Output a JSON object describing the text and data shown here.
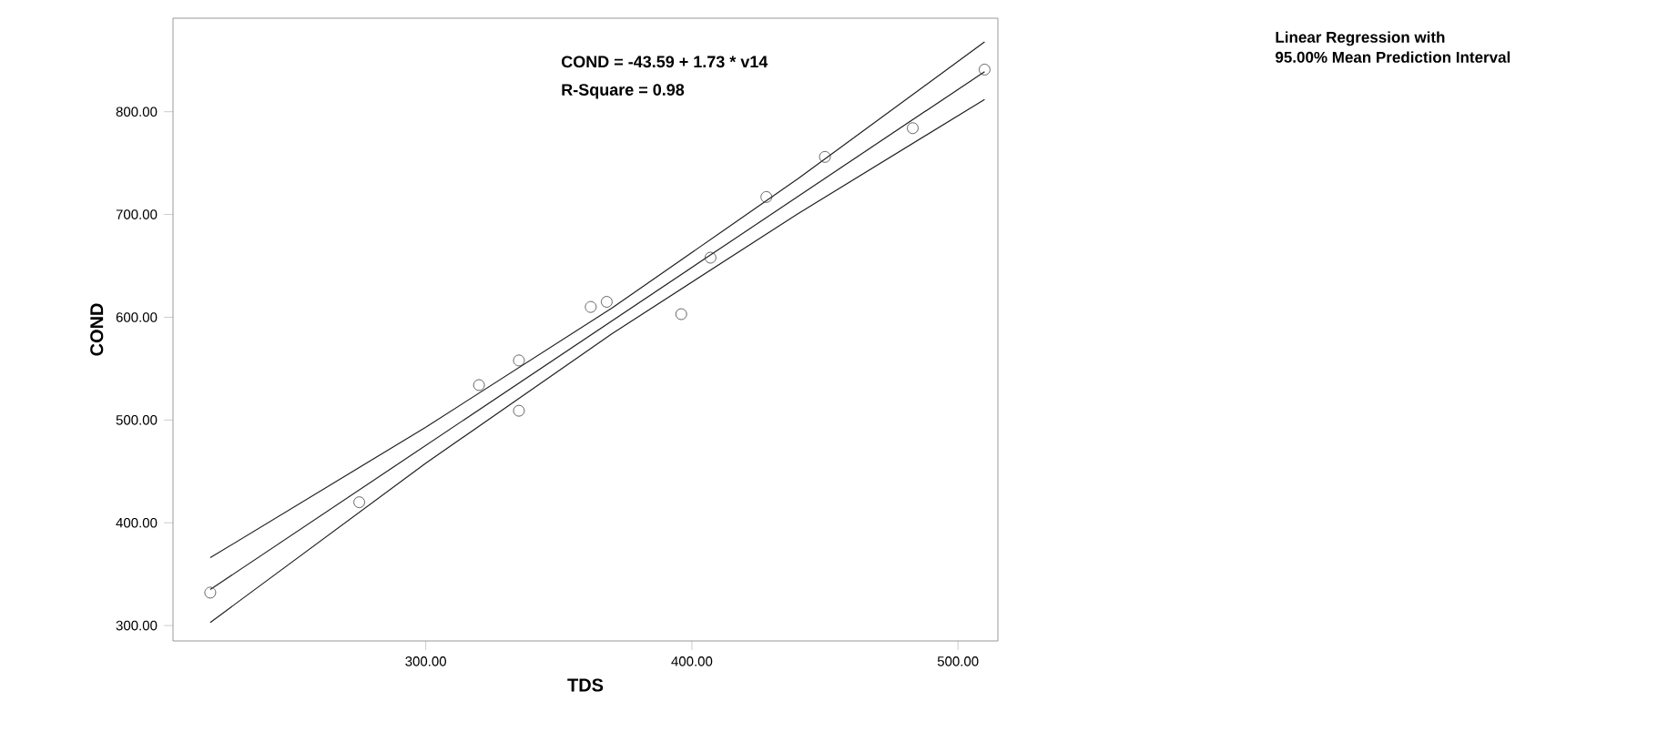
{
  "chart_data": {
    "type": "scatter",
    "xlabel": "TDS",
    "ylabel": "COND",
    "annotations": [
      "COND = -43.59 + 1.73 * v14",
      "R-Square = 0.98",
      "Linear Regression with",
      "95.00% Mean Prediction Interval"
    ],
    "xlim": [
      205,
      515
    ],
    "ylim": [
      285,
      891
    ],
    "xticks": [
      {
        "value": 300,
        "label": "300.00"
      },
      {
        "value": 400,
        "label": "400.00"
      },
      {
        "value": 500,
        "label": "500.00"
      }
    ],
    "yticks": [
      {
        "value": 300,
        "label": "300.00"
      },
      {
        "value": 400,
        "label": "400.00"
      },
      {
        "value": 500,
        "label": "500.00"
      },
      {
        "value": 600,
        "label": "600.00"
      },
      {
        "value": 700,
        "label": "700.00"
      },
      {
        "value": 800,
        "label": "800.00"
      }
    ],
    "grid": false,
    "marker": "circle",
    "series": [
      {
        "color": "#404040",
        "x": [
          219,
          275,
          320,
          335,
          335,
          362,
          368,
          396,
          407,
          428,
          450,
          483,
          510
        ],
        "values": [
          332,
          420,
          534,
          558,
          509,
          610,
          615,
          603,
          658,
          717,
          756,
          784,
          841
        ]
      },
      {
        "type": "line",
        "color": "#202020",
        "marker": "none",
        "x": [
          219,
          510
        ],
        "values": [
          335,
          839
        ]
      },
      {
        "type": "line",
        "color": "#202020",
        "marker": "none",
        "x": [
          219,
          300,
          370,
          440,
          510
        ],
        "values": [
          366,
          493,
          609,
          735,
          868
        ]
      },
      {
        "type": "line",
        "color": "#202020",
        "marker": "none",
        "x": [
          219,
          300,
          370,
          440,
          510
        ],
        "values": [
          303,
          458,
          584,
          701,
          812
        ]
      }
    ]
  }
}
